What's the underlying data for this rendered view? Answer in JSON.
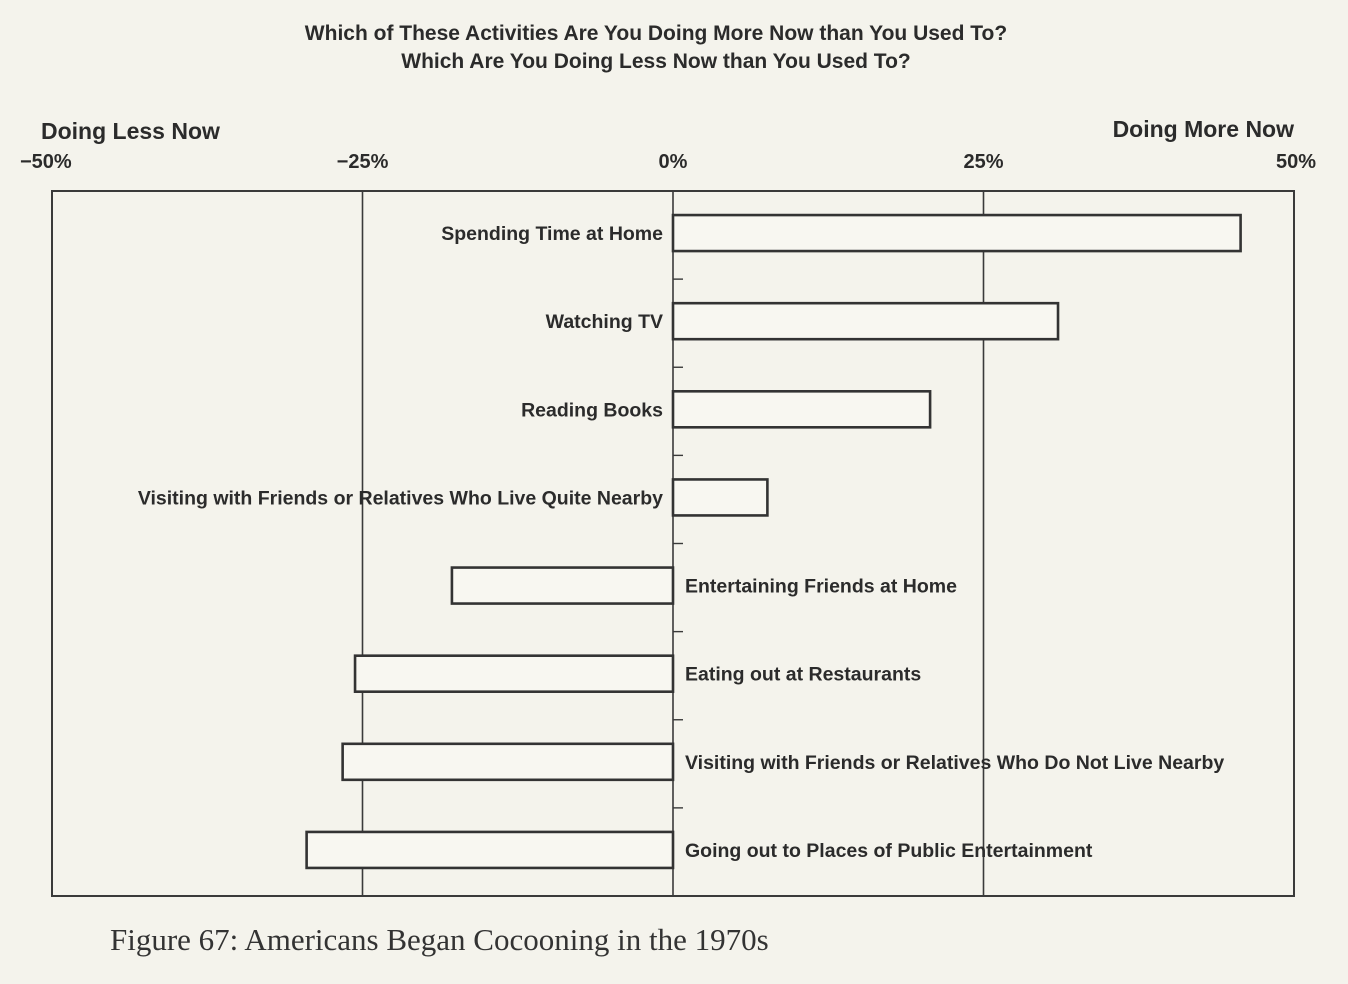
{
  "chart_data": {
    "type": "bar",
    "orientation": "horizontal",
    "title": "Which of These Activities Are You Doing More Now than You Used To?",
    "subtitle": "Which Are You Doing Less Now than You Used To?",
    "left_label": "Doing Less Now",
    "right_label": "Doing More Now",
    "xlim": [
      -50,
      50
    ],
    "ticks": [
      -50,
      -25,
      0,
      25,
      50
    ],
    "tick_labels": [
      "−50%",
      "−25%",
      "0%",
      "25%",
      "50%"
    ],
    "grid": "vertical gridlines at -25%, 0%, 25%",
    "categories": [
      "Spending Time at Home",
      "Watching TV",
      "Reading Books",
      "Visiting with Friends or Relatives Who Live Quite Nearby",
      "Entertaining Friends at Home",
      "Eating out at Restaurants",
      "Visiting with Friends or Relatives Who Do Not Live Nearby",
      "Going out to Places of Public Entertainment"
    ],
    "values": [
      45.7,
      31.0,
      20.7,
      7.6,
      -17.8,
      -25.6,
      -26.6,
      -29.5
    ]
  },
  "caption": "Figure 67: Americans Began Cocooning in the 1970s"
}
